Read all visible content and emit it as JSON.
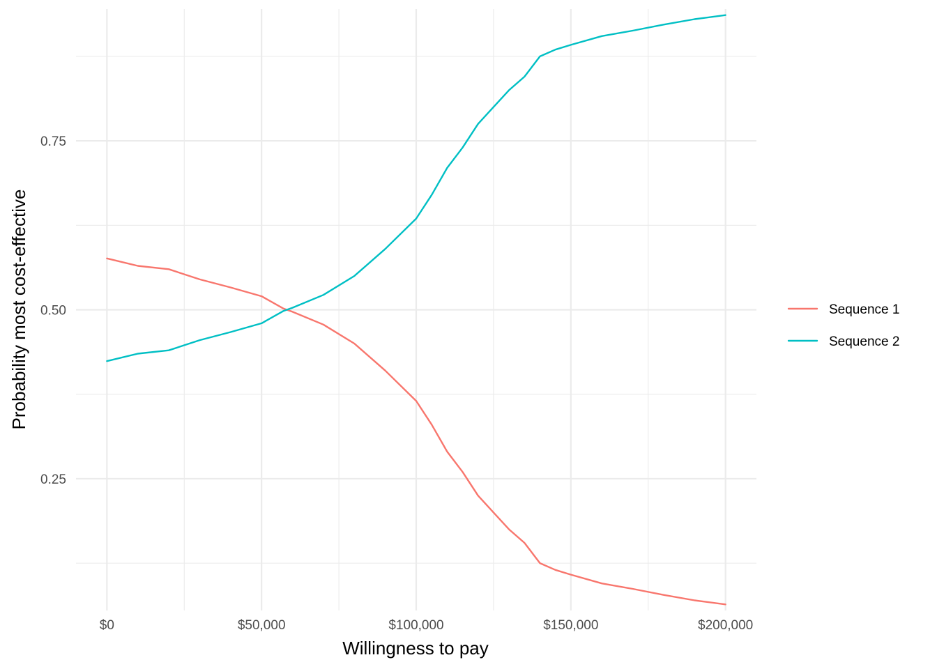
{
  "chart_data": {
    "type": "line",
    "title": "",
    "xlabel": "Willingness to pay",
    "ylabel": "Probability most cost-effective",
    "xlim": [
      -10000,
      210000
    ],
    "ylim": [
      0.055,
      0.945
    ],
    "x_ticks": [
      0,
      50000,
      100000,
      150000,
      200000
    ],
    "x_tick_labels": [
      "$0",
      "$50,000",
      "$100,000",
      "$150,000",
      "$200,000"
    ],
    "x_minor_ticks": [
      25000,
      75000,
      125000,
      175000
    ],
    "y_ticks": [
      0.25,
      0.5,
      0.75
    ],
    "y_tick_labels": [
      "0.25",
      "0.50",
      "0.75"
    ],
    "y_minor_ticks": [
      0.125,
      0.375,
      0.625,
      0.875
    ],
    "grid": true,
    "legend": "right",
    "x": [
      0,
      10000,
      20000,
      30000,
      40000,
      50000,
      57000,
      60000,
      70000,
      80000,
      90000,
      100000,
      105000,
      110000,
      115000,
      120000,
      125000,
      130000,
      135000,
      140000,
      145000,
      150000,
      160000,
      170000,
      180000,
      190000,
      200000
    ],
    "series": [
      {
        "name": "Sequence 1",
        "color": "#F8766D",
        "values": [
          0.576,
          0.565,
          0.56,
          0.545,
          0.533,
          0.52,
          0.502,
          0.497,
          0.478,
          0.45,
          0.41,
          0.365,
          0.33,
          0.29,
          0.26,
          0.225,
          0.2,
          0.175,
          0.155,
          0.125,
          0.115,
          0.108,
          0.095,
          0.087,
          0.078,
          0.07,
          0.064
        ]
      },
      {
        "name": "Sequence 2",
        "color": "#00BFC4",
        "values": [
          0.424,
          0.435,
          0.44,
          0.455,
          0.467,
          0.48,
          0.498,
          0.503,
          0.522,
          0.55,
          0.59,
          0.635,
          0.67,
          0.71,
          0.74,
          0.775,
          0.8,
          0.825,
          0.845,
          0.875,
          0.885,
          0.892,
          0.905,
          0.913,
          0.922,
          0.93,
          0.936
        ]
      }
    ]
  }
}
